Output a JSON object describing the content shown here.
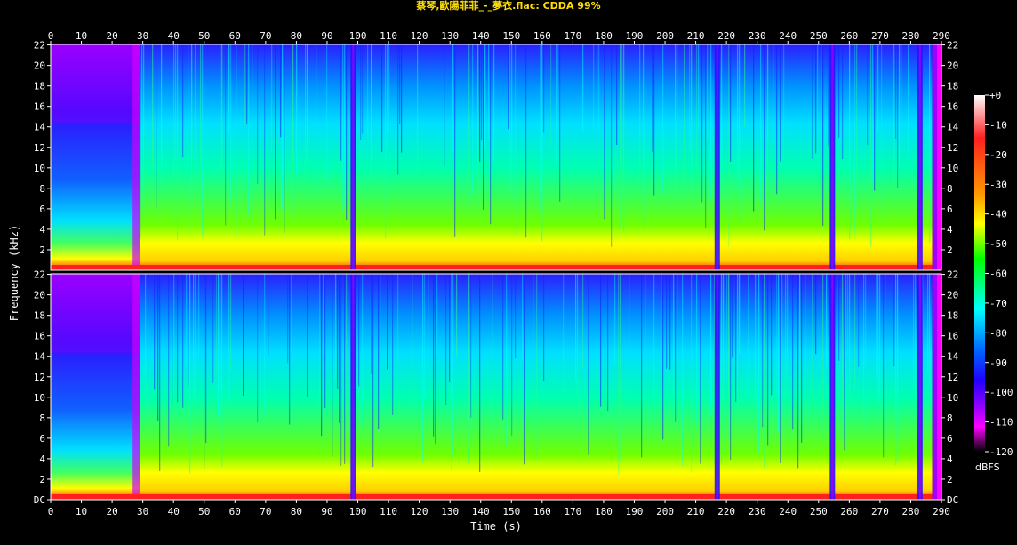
{
  "chart_data": {
    "type": "heatmap",
    "title": "蔡琴,歐陽菲菲_-_夢衣.flac: CDDA 99%",
    "xlabel": "Time (s)",
    "ylabel": "Frequency (kHz)",
    "colorbar_label": "dBFS",
    "x_ticks": [
      "0",
      "10",
      "20",
      "30",
      "40",
      "50",
      "60",
      "70",
      "80",
      "90",
      "100",
      "110",
      "120",
      "130",
      "140",
      "150",
      "160",
      "170",
      "180",
      "190",
      "200",
      "210",
      "220",
      "230",
      "240",
      "250",
      "260",
      "270",
      "280",
      "290"
    ],
    "y_ticks_left": [
      "DC",
      "2",
      "4",
      "6",
      "8",
      "10",
      "12",
      "14",
      "16",
      "18",
      "20",
      "22"
    ],
    "y_ticks_right": [
      "DC",
      "2",
      "4",
      "6",
      "8",
      "10",
      "12",
      "14",
      "16",
      "18",
      "20",
      "22"
    ],
    "xlim": [
      0,
      290
    ],
    "ylim_khz": [
      0,
      22.05
    ],
    "channels": [
      "upper",
      "lower"
    ],
    "colorbar_ticks": [
      "+0",
      "-10",
      "-20",
      "-30",
      "-40",
      "-50",
      "-60",
      "-70",
      "-80",
      "-90",
      "-100",
      "-110",
      "-120"
    ],
    "colorbar_range_db": [
      0,
      -120
    ],
    "silence_gaps_s": [
      29,
      98.5,
      217,
      254.5,
      283
    ],
    "track_end_s": 287
  }
}
